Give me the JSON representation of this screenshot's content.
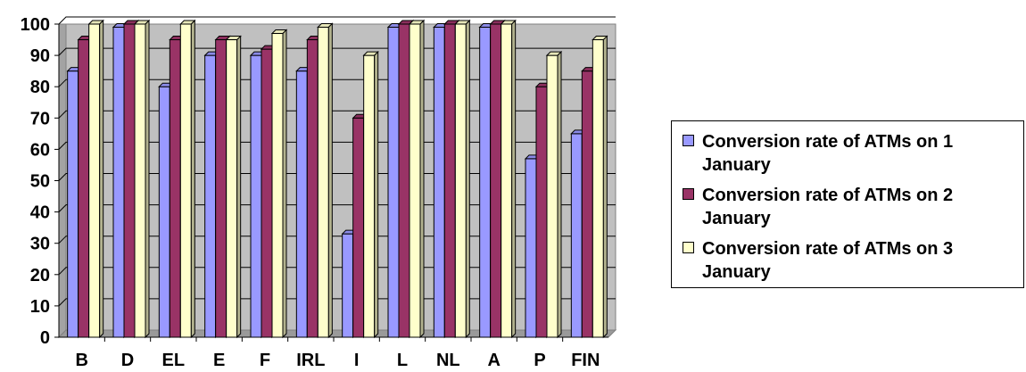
{
  "chart_data": {
    "type": "bar",
    "title": "",
    "xlabel": "",
    "ylabel": "",
    "ylim": [
      0,
      100
    ],
    "yticks": [
      0,
      10,
      20,
      30,
      40,
      50,
      60,
      70,
      80,
      90,
      100
    ],
    "grid": true,
    "legend_position": "right",
    "categories": [
      "B",
      "D",
      "EL",
      "E",
      "F",
      "IRL",
      "I",
      "L",
      "NL",
      "A",
      "P",
      "FIN"
    ],
    "series": [
      {
        "name": "Conversion rate of ATMs on 1 January",
        "color": "#9999FF",
        "values": [
          85,
          99,
          80,
          90,
          90,
          85,
          33,
          99,
          99,
          99,
          57,
          65
        ]
      },
      {
        "name": "Conversion rate of ATMs on 2 January",
        "color": "#993366",
        "values": [
          95,
          100,
          95,
          95,
          92,
          95,
          70,
          100,
          100,
          100,
          80,
          85
        ]
      },
      {
        "name": "Conversion rate of ATMs on 3 January",
        "color": "#FFFFCC",
        "values": [
          100,
          100,
          100,
          95,
          97,
          99,
          90,
          100,
          100,
          100,
          90,
          95
        ]
      }
    ],
    "plot_background": "#C0C0C0"
  }
}
